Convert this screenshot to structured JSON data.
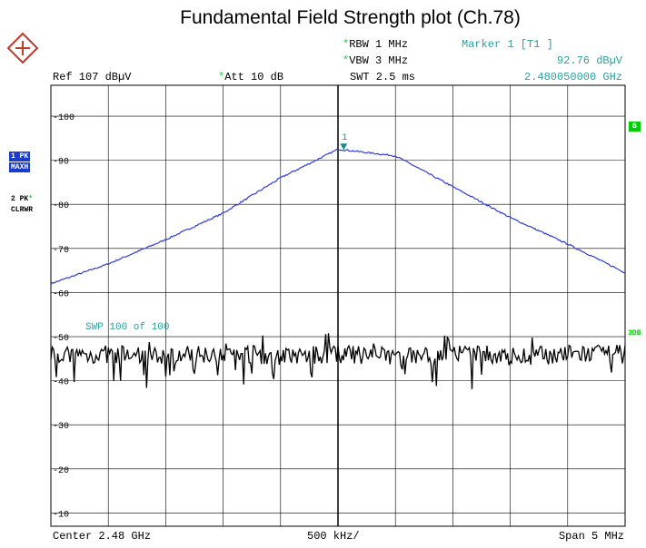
{
  "header": {
    "ref_text": "Ref  107 dBµV",
    "att_star": "*",
    "att_text": "Att  10 dB",
    "rbw_star": "*",
    "rbw_text": "RBW 1 MHz",
    "vbw_star": "*",
    "vbw_text": "VBW 3 MHz",
    "swt_text": "SWT 2.5 ms",
    "marker_title": "Marker 1 [T1 ]",
    "marker_level": "92.76 dBµV",
    "marker_freq": "2.480050000 GHz"
  },
  "side": {
    "trace1_line1": "1 PK",
    "trace1_line2": "MAXH",
    "trace2_line1": "2 PK",
    "trace2_star": "*",
    "trace2_line2": "CLRWR",
    "right_badge": "B",
    "right_label": "3DB"
  },
  "footer": {
    "center": "Center 2.48 GHz",
    "div": "500 kHz/",
    "span": "Span 5 MHz"
  },
  "colors": {
    "trace1": "#2b3cdc",
    "trace2": "#000000",
    "marker": "#1a8a8a",
    "grid": "#000000",
    "annotation": "#2aa0a0"
  },
  "chart_data": {
    "type": "line",
    "title": "Fundamental Field Strength plot (Ch.78)",
    "xlabel": "",
    "ylabel": "",
    "x_unit": "GHz",
    "y_unit": "dBµV",
    "xlim": [
      2.4775,
      2.4825
    ],
    "ylim": [
      7,
      107
    ],
    "y_ticks": [
      100,
      90,
      80,
      70,
      60,
      50,
      40,
      30,
      20,
      10
    ],
    "grid": true,
    "sweep_text": "SWP   100 of   100",
    "marker": {
      "label": "1",
      "x": 2.48005,
      "y": 92.76
    },
    "series": [
      {
        "name": "1 PK MAXH",
        "x": [
          2.4775,
          2.478,
          2.4785,
          2.479,
          2.4795,
          2.48,
          2.4805,
          2.481,
          2.4815,
          2.482,
          2.4825
        ],
        "values": [
          62,
          66.5,
          72,
          78,
          86,
          92.5,
          91,
          84,
          77,
          71,
          64.5
        ]
      },
      {
        "name": "2 PK CLRWR",
        "x": [
          2.4775,
          2.478,
          2.4785,
          2.479,
          2.4795,
          2.48,
          2.4805,
          2.481,
          2.4815,
          2.482,
          2.4825
        ],
        "values": [
          45.5,
          46,
          45.5,
          46.5,
          45.5,
          46,
          45.5,
          46,
          45.5,
          46,
          46
        ]
      }
    ]
  }
}
